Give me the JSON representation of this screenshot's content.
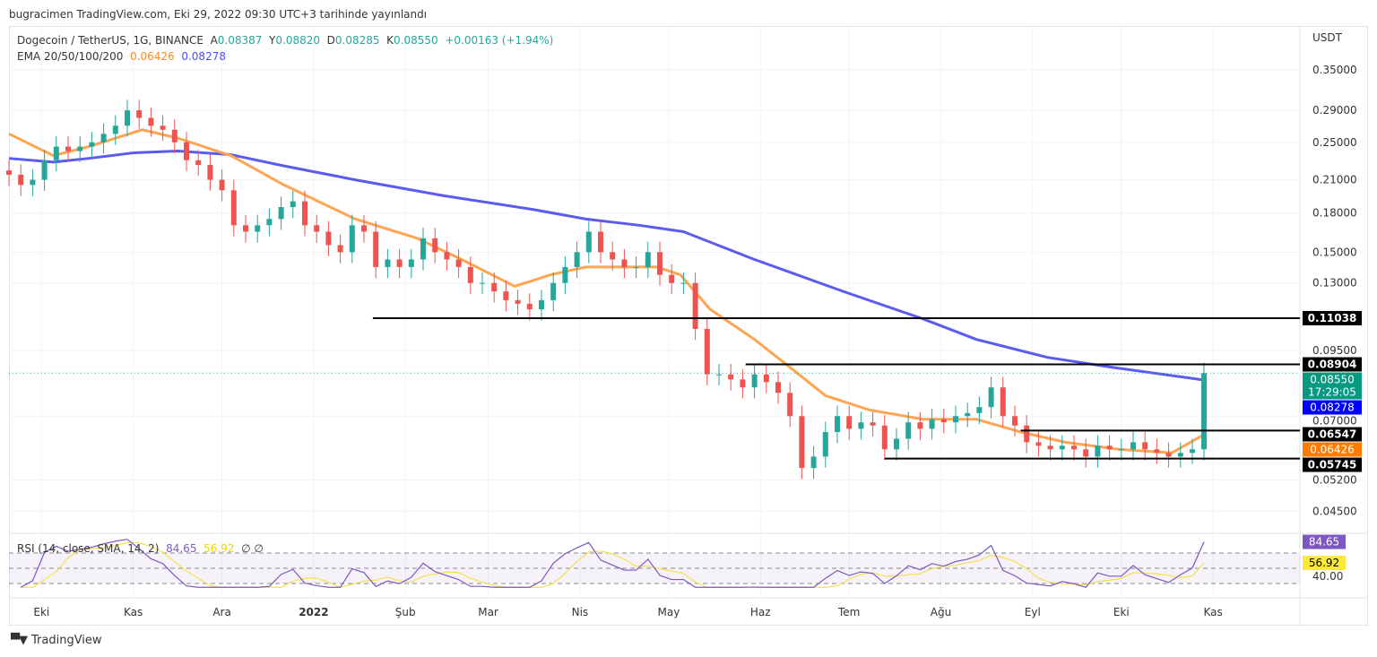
{
  "published": "bugracimen TradingView.com, Eki 29, 2022 09:30 UTC+3 tarihinde yayınlandı",
  "legend": {
    "symbol": "Dogecoin / TetherUS, 1G, BINANCE",
    "open_label": "A",
    "open": "0.08387",
    "high_label": "Y",
    "high": "0.08820",
    "low_label": "D",
    "low": "0.08285",
    "close_label": "K",
    "close": "0.08550",
    "change": "+0.00163 (+1.94%)",
    "ema_label": "EMA 20/50/100/200",
    "ema50_value": "0.06426",
    "ema200_value": "0.08278"
  },
  "rsi_legend": {
    "label": "RSI (14, close, SMA, 14, 2)",
    "rsi": "84.65",
    "sma": "56.92",
    "extra": "∅  ∅"
  },
  "brand": {
    "logo_text": "TV",
    "name": "TradingView"
  },
  "colors": {
    "up": "#26a69a",
    "down": "#ef5350",
    "ema50": "#ffa552",
    "ema200": "#5b5bf0",
    "rsi": "#7e57c2",
    "rsi_sma": "#f5e050"
  },
  "chart_data": {
    "type": "candlestick",
    "scale": "log",
    "currency": "USDT",
    "ylim": [
      0.04,
      0.37
    ],
    "y_ticks": [
      "0.35000",
      "0.29000",
      "0.25000",
      "0.21000",
      "0.18000",
      "0.15000",
      "0.13000",
      "0.09500",
      "0.07000",
      "0.05200",
      "0.04500"
    ],
    "x_ticks": [
      {
        "label": "Eki",
        "date": "2021-10-01"
      },
      {
        "label": "Kas",
        "date": "2021-11-01"
      },
      {
        "label": "Ara",
        "date": "2021-12-01"
      },
      {
        "label": "2022",
        "date": "2022-01-01",
        "bold": true
      },
      {
        "label": "Şub",
        "date": "2022-02-01"
      },
      {
        "label": "Mar",
        "date": "2022-03-01"
      },
      {
        "label": "Nis",
        "date": "2022-04-01"
      },
      {
        "label": "May",
        "date": "2022-05-01"
      },
      {
        "label": "Haz",
        "date": "2022-06-01"
      },
      {
        "label": "Tem",
        "date": "2022-07-01"
      },
      {
        "label": "Ağu",
        "date": "2022-08-01"
      },
      {
        "label": "Eyl",
        "date": "2022-09-01"
      },
      {
        "label": "Eki",
        "date": "2022-10-01"
      },
      {
        "label": "Kas",
        "date": "2022-11-01"
      }
    ],
    "start_date": "2021-09-20",
    "closes": [
      0.215,
      0.205,
      0.21,
      0.23,
      0.245,
      0.24,
      0.245,
      0.25,
      0.26,
      0.27,
      0.29,
      0.28,
      0.27,
      0.265,
      0.25,
      0.23,
      0.225,
      0.21,
      0.2,
      0.17,
      0.165,
      0.17,
      0.175,
      0.185,
      0.19,
      0.17,
      0.165,
      0.155,
      0.15,
      0.17,
      0.165,
      0.14,
      0.145,
      0.14,
      0.145,
      0.16,
      0.15,
      0.145,
      0.14,
      0.13,
      0.13,
      0.125,
      0.12,
      0.118,
      0.115,
      0.12,
      0.13,
      0.14,
      0.15,
      0.165,
      0.15,
      0.145,
      0.14,
      0.14,
      0.15,
      0.135,
      0.13,
      0.13,
      0.105,
      0.085,
      0.085,
      0.083,
      0.08,
      0.085,
      0.082,
      0.078,
      0.07,
      0.055,
      0.058,
      0.065,
      0.07,
      0.066,
      0.068,
      0.067,
      0.06,
      0.063,
      0.068,
      0.066,
      0.069,
      0.068,
      0.07,
      0.071,
      0.073,
      0.08,
      0.07,
      0.067,
      0.062,
      0.061,
      0.06,
      0.061,
      0.06,
      0.058,
      0.061,
      0.06,
      0.06,
      0.062,
      0.06,
      0.059,
      0.058,
      0.059,
      0.06,
      0.0855
    ],
    "ema50": [
      [
        "2021-09-20",
        0.26
      ],
      [
        "2021-10-05",
        0.235
      ],
      [
        "2021-10-17",
        0.245
      ],
      [
        "2021-11-04",
        0.265
      ],
      [
        "2021-11-16",
        0.255
      ],
      [
        "2021-12-04",
        0.235
      ],
      [
        "2021-12-22",
        0.205
      ],
      [
        "2022-01-15",
        0.175
      ],
      [
        "2022-02-05",
        0.16
      ],
      [
        "2022-02-20",
        0.145
      ],
      [
        "2022-03-10",
        0.128
      ],
      [
        "2022-03-22",
        0.135
      ],
      [
        "2022-04-03",
        0.14
      ],
      [
        "2022-04-15",
        0.14
      ],
      [
        "2022-04-27",
        0.14
      ],
      [
        "2022-05-05",
        0.135
      ],
      [
        "2022-05-15",
        0.115
      ],
      [
        "2022-05-30",
        0.1
      ],
      [
        "2022-06-14",
        0.085
      ],
      [
        "2022-06-23",
        0.077
      ],
      [
        "2022-07-08",
        0.072
      ],
      [
        "2022-07-26",
        0.069
      ],
      [
        "2022-08-13",
        0.069
      ],
      [
        "2022-08-28",
        0.065
      ],
      [
        "2022-09-12",
        0.062
      ],
      [
        "2022-09-30",
        0.06
      ],
      [
        "2022-10-18",
        0.059
      ],
      [
        "2022-10-29",
        0.06426
      ]
    ],
    "ema200": [
      [
        "2021-09-20",
        0.232
      ],
      [
        "2021-10-05",
        0.228
      ],
      [
        "2021-10-17",
        0.232
      ],
      [
        "2021-11-01",
        0.238
      ],
      [
        "2021-11-16",
        0.24
      ],
      [
        "2021-12-04",
        0.236
      ],
      [
        "2021-12-22",
        0.224
      ],
      [
        "2022-01-15",
        0.21
      ],
      [
        "2022-02-14",
        0.195
      ],
      [
        "2022-03-16",
        0.183
      ],
      [
        "2022-04-03",
        0.175
      ],
      [
        "2022-04-21",
        0.17
      ],
      [
        "2022-05-06",
        0.165
      ],
      [
        "2022-05-30",
        0.145
      ],
      [
        "2022-06-29",
        0.125
      ],
      [
        "2022-07-26",
        0.11
      ],
      [
        "2022-08-13",
        0.1
      ],
      [
        "2022-09-06",
        0.092
      ],
      [
        "2022-09-27",
        0.088
      ],
      [
        "2022-10-29",
        0.08278
      ]
    ],
    "horizontal_lines": [
      {
        "price": 0.11038,
        "label": "0.11038",
        "from": "2022-01-21"
      },
      {
        "price": 0.08904,
        "label": "0.08904",
        "from": "2022-05-27"
      },
      {
        "price": 0.06547,
        "label": "0.06547",
        "from": "2022-08-28"
      },
      {
        "price": 0.05745,
        "label": "0.05745",
        "from": "2022-07-13"
      }
    ],
    "price_labels": [
      {
        "price": 0.0855,
        "label": "0.08550",
        "sub": "17:29:05",
        "color": "#089981"
      },
      {
        "price": 0.08278,
        "label": "0.08278",
        "color": "#0000ff"
      },
      {
        "price": 0.06426,
        "label": "0.06426",
        "color": "#ff7b00"
      }
    ],
    "rsi": {
      "ylim": [
        0,
        100
      ],
      "levels": [
        70,
        50,
        30
      ],
      "tick": "40.00",
      "last": "84.65",
      "sma_last": "56.92"
    }
  }
}
